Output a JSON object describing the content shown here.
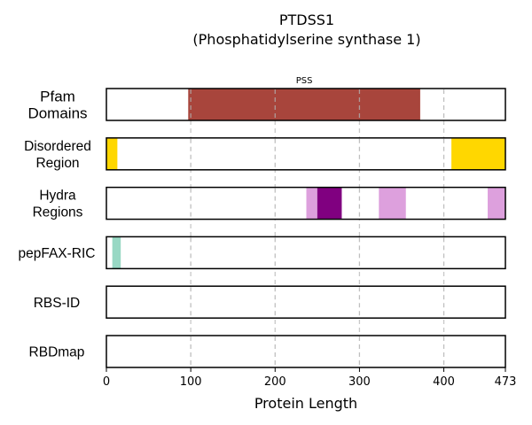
{
  "chart_data": {
    "type": "bar",
    "title": "PTDSS1",
    "subtitle": "(Phosphatidylserine synthase 1)",
    "xlabel": "Protein Length",
    "xlim": [
      0,
      473
    ],
    "xticks": [
      0,
      100,
      200,
      300,
      400,
      473
    ],
    "grid": "vertical dashed at 100, 200, 300, 400",
    "tracks": [
      {
        "label": [
          "Pfam",
          "Domains"
        ],
        "segments": [
          {
            "start": 97,
            "end": 372,
            "color": "#a8453c",
            "label": "PSS"
          }
        ]
      },
      {
        "label": [
          "Disordered",
          "Region"
        ],
        "segments": [
          {
            "start": 0,
            "end": 13,
            "color": "#ffd700"
          },
          {
            "start": 409,
            "end": 473,
            "color": "#ffd700"
          }
        ]
      },
      {
        "label": [
          "Hydra",
          "Regions"
        ],
        "segments": [
          {
            "start": 237,
            "end": 250,
            "color": "#dda0dd"
          },
          {
            "start": 250,
            "end": 279,
            "color": "#800080"
          },
          {
            "start": 323,
            "end": 355,
            "color": "#dda0dd"
          },
          {
            "start": 452,
            "end": 473,
            "color": "#dda0dd"
          }
        ]
      },
      {
        "label": [
          "pepFAX-RIC"
        ],
        "segments": [
          {
            "start": 7,
            "end": 17,
            "color": "#98d8c4"
          }
        ]
      },
      {
        "label": [
          "RBS-ID"
        ],
        "segments": []
      },
      {
        "label": [
          "RBDmap"
        ],
        "segments": []
      }
    ]
  }
}
